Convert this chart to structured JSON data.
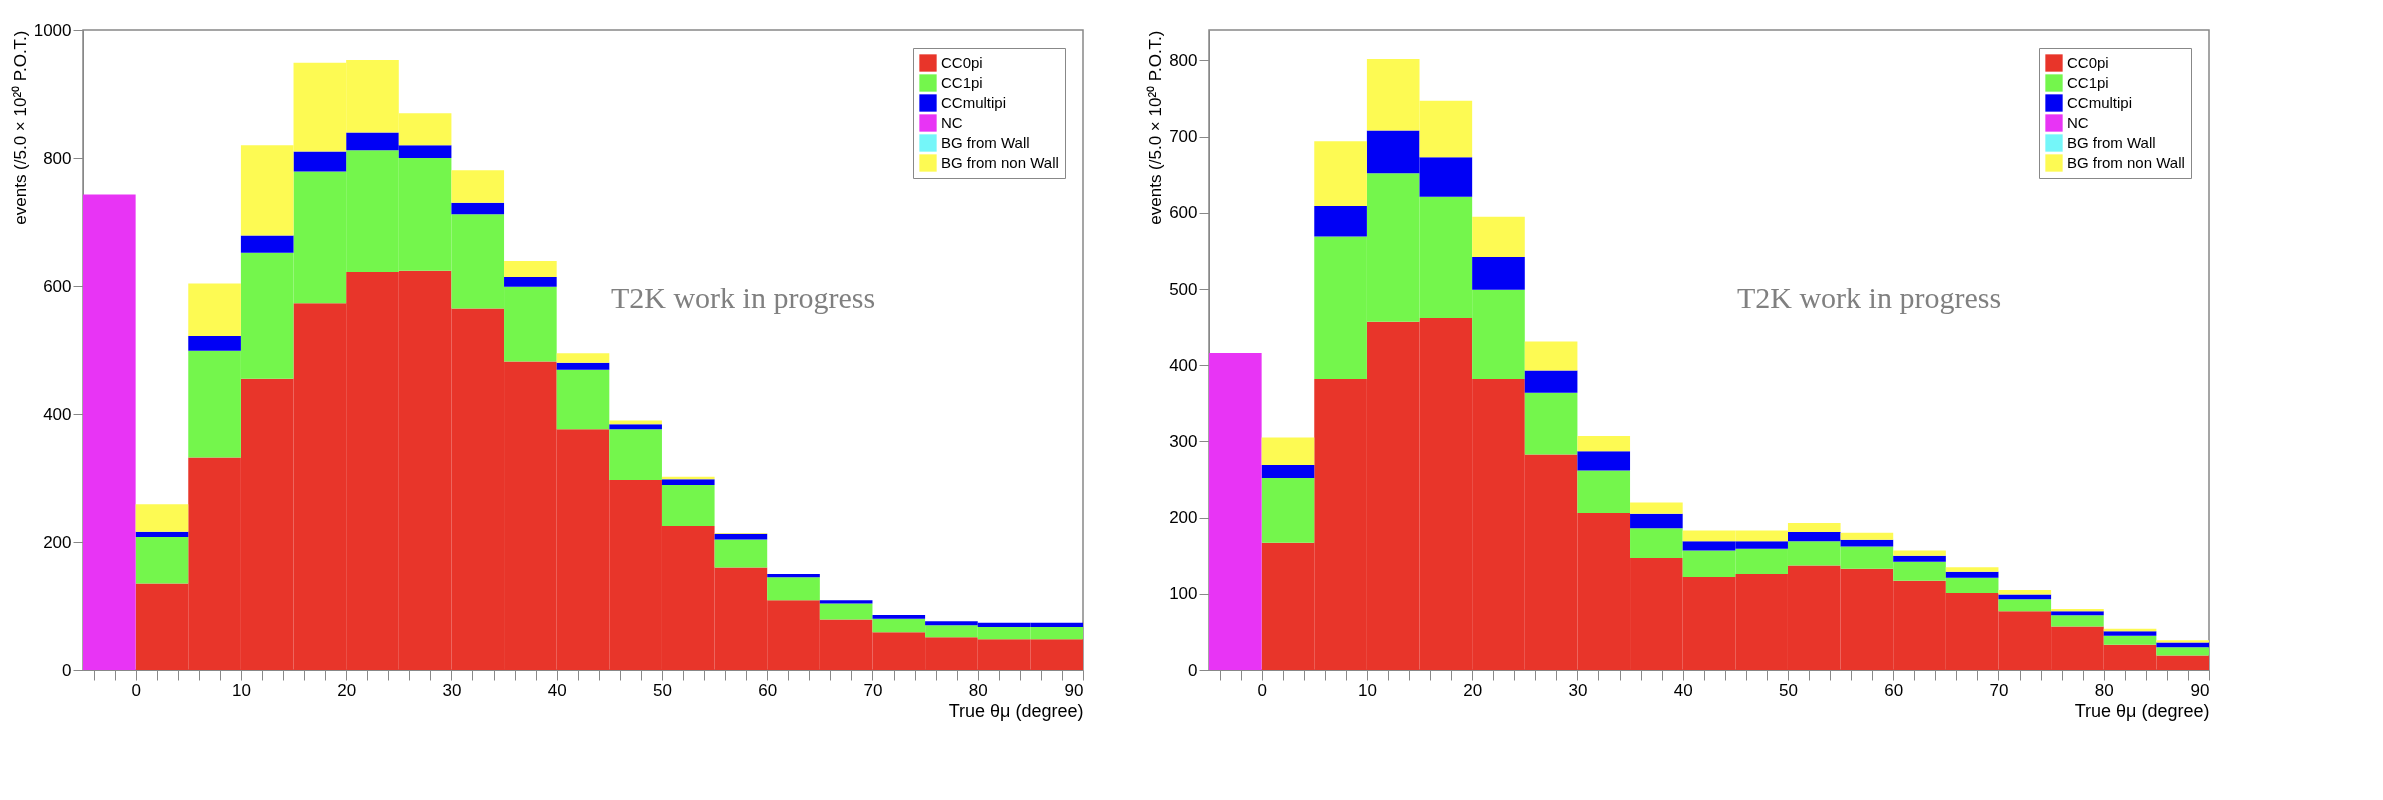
{
  "chart_data": [
    {
      "type": "bar",
      "stacked": true,
      "legend": "top right",
      "grid": false,
      "x": [
        -2.5,
        2.5,
        7.5,
        12.5,
        17.5,
        22.5,
        27.5,
        32.5,
        37.5,
        42.5,
        47.5,
        52.5,
        57.5,
        62.5,
        67.5,
        72.5,
        77.5,
        82.5,
        87.5
      ],
      "xlim": [
        -5,
        90
      ],
      "xticks": [
        {
          "value": -4,
          "label": null
        },
        {
          "value": -2,
          "label": null
        },
        0,
        {
          "value": 2,
          "label": null
        },
        {
          "value": 4,
          "label": null
        },
        {
          "value": 6,
          "label": null
        },
        {
          "value": 8,
          "label": null
        },
        10,
        {
          "value": 12,
          "label": null
        },
        {
          "value": 14,
          "label": null
        },
        {
          "value": 16,
          "label": null
        },
        {
          "value": 18,
          "label": null
        },
        20,
        {
          "value": 22,
          "label": null
        },
        {
          "value": 24,
          "label": null
        },
        {
          "value": 26,
          "label": null
        },
        {
          "value": 28,
          "label": null
        },
        30,
        {
          "value": 32,
          "label": null
        },
        {
          "value": 34,
          "label": null
        },
        {
          "value": 36,
          "label": null
        },
        {
          "value": 38,
          "label": null
        },
        40,
        {
          "value": 42,
          "label": null
        },
        {
          "value": 44,
          "label": null
        },
        {
          "value": 46,
          "label": null
        },
        {
          "value": 48,
          "label": null
        },
        50,
        {
          "value": 52,
          "label": null
        },
        {
          "value": 54,
          "label": null
        },
        {
          "value": 56,
          "label": null
        },
        {
          "value": 58,
          "label": null
        },
        60,
        {
          "value": 62,
          "label": null
        },
        {
          "value": 64,
          "label": null
        },
        {
          "value": 66,
          "label": null
        },
        {
          "value": 68,
          "label": null
        },
        70,
        {
          "value": 72,
          "label": null
        },
        {
          "value": 74,
          "label": null
        },
        {
          "value": 76,
          "label": null
        },
        {
          "value": 78,
          "label": null
        },
        80,
        {
          "value": 82,
          "label": null
        },
        {
          "value": 84,
          "label": null
        },
        {
          "value": 86,
          "label": null
        },
        {
          "value": 88,
          "label": null
        },
        90
      ],
      "ylim": [
        0,
        1000
      ],
      "yticks": [
        0,
        200,
        400,
        600,
        800,
        1000
      ],
      "xlabel": "True θμ (degree)",
      "ylabel": "events (/5.0 × 10²⁰ P.O.T.)",
      "annotations": [
        "T2K work in progress"
      ],
      "series": [
        {
          "name": "CC0pi",
          "color": "#e8352a",
          "values": [
            0,
            135,
            332,
            455,
            573,
            622,
            624,
            565,
            482,
            376,
            297,
            225,
            160,
            109,
            79,
            59,
            51,
            48,
            48
          ]
        },
        {
          "name": "CC1pi",
          "color": "#74f64c",
          "values": [
            0,
            73,
            167,
            197,
            206,
            190,
            176,
            147,
            117,
            93,
            79,
            64,
            44,
            36,
            25,
            21,
            19,
            19,
            19
          ]
        },
        {
          "name": "CCmultipi",
          "color": "#0000f5",
          "values": [
            0,
            8,
            23,
            27,
            31,
            28,
            20,
            18,
            15,
            11,
            8,
            9,
            9,
            5,
            5,
            6,
            6,
            7,
            7
          ]
        },
        {
          "name": "NC",
          "color": "#e834f5",
          "values": [
            743,
            0,
            0,
            0,
            0,
            0,
            0,
            0,
            0,
            0,
            0,
            0,
            0,
            0,
            0,
            0,
            0,
            0,
            0
          ]
        },
        {
          "name": "BG from Wall",
          "color": "#74f6f9",
          "values": [
            0,
            0,
            0,
            0,
            0,
            0,
            0,
            0,
            0,
            0,
            0,
            0,
            0,
            0,
            0,
            0,
            0,
            0,
            0
          ]
        },
        {
          "name": "BG from non Wall",
          "color": "#fdfa53",
          "values": [
            0,
            43,
            82,
            141,
            139,
            113,
            50,
            51,
            25,
            15,
            6,
            4,
            1,
            0,
            0,
            0,
            0,
            0,
            0
          ]
        }
      ]
    },
    {
      "type": "bar",
      "stacked": true,
      "legend": "top right",
      "grid": false,
      "x": [
        -2.5,
        2.5,
        7.5,
        12.5,
        17.5,
        22.5,
        27.5,
        32.5,
        37.5,
        42.5,
        47.5,
        52.5,
        57.5,
        62.5,
        67.5,
        72.5,
        77.5,
        82.5,
        87.5
      ],
      "xlim": [
        -5,
        90
      ],
      "xticks": [
        {
          "value": -4,
          "label": null
        },
        {
          "value": -2,
          "label": null
        },
        0,
        {
          "value": 2,
          "label": null
        },
        {
          "value": 4,
          "label": null
        },
        {
          "value": 6,
          "label": null
        },
        {
          "value": 8,
          "label": null
        },
        10,
        {
          "value": 12,
          "label": null
        },
        {
          "value": 14,
          "label": null
        },
        {
          "value": 16,
          "label": null
        },
        {
          "value": 18,
          "label": null
        },
        20,
        {
          "value": 22,
          "label": null
        },
        {
          "value": 24,
          "label": null
        },
        {
          "value": 26,
          "label": null
        },
        {
          "value": 28,
          "label": null
        },
        30,
        {
          "value": 32,
          "label": null
        },
        {
          "value": 34,
          "label": null
        },
        {
          "value": 36,
          "label": null
        },
        {
          "value": 38,
          "label": null
        },
        40,
        {
          "value": 42,
          "label": null
        },
        {
          "value": 44,
          "label": null
        },
        {
          "value": 46,
          "label": null
        },
        {
          "value": 48,
          "label": null
        },
        50,
        {
          "value": 52,
          "label": null
        },
        {
          "value": 54,
          "label": null
        },
        {
          "value": 56,
          "label": null
        },
        {
          "value": 58,
          "label": null
        },
        60,
        {
          "value": 62,
          "label": null
        },
        {
          "value": 64,
          "label": null
        },
        {
          "value": 66,
          "label": null
        },
        {
          "value": 68,
          "label": null
        },
        70,
        {
          "value": 72,
          "label": null
        },
        {
          "value": 74,
          "label": null
        },
        {
          "value": 76,
          "label": null
        },
        {
          "value": 78,
          "label": null
        },
        80,
        {
          "value": 82,
          "label": null
        },
        {
          "value": 84,
          "label": null
        },
        {
          "value": 86,
          "label": null
        },
        {
          "value": 88,
          "label": null
        },
        90
      ],
      "ylim": [
        0,
        840
      ],
      "yticks": [
        0,
        100,
        200,
        300,
        400,
        500,
        600,
        700,
        800
      ],
      "xlabel": "True θμ (degree)",
      "ylabel": "events (/5.0 × 10²⁰ P.O.T.)",
      "annotations": [
        "T2K work in progress"
      ],
      "series": [
        {
          "name": "CC0pi",
          "color": "#e8352a",
          "values": [
            0,
            167,
            382,
            457,
            462,
            382,
            283,
            206,
            147,
            122,
            126,
            137,
            133,
            117,
            101,
            77,
            57,
            33,
            19
          ]
        },
        {
          "name": "CC1pi",
          "color": "#74f64c",
          "values": [
            0,
            85,
            187,
            195,
            159,
            117,
            81,
            56,
            39,
            35,
            33,
            32,
            29,
            25,
            20,
            16,
            15,
            12,
            11
          ]
        },
        {
          "name": "CCmultipi",
          "color": "#0000f5",
          "values": [
            0,
            17,
            40,
            56,
            52,
            43,
            29,
            25,
            19,
            12,
            10,
            12,
            9,
            8,
            8,
            6,
            5,
            6,
            6
          ]
        },
        {
          "name": "NC",
          "color": "#e834f5",
          "values": [
            416,
            0,
            0,
            0,
            0,
            0,
            0,
            0,
            0,
            0,
            0,
            0,
            0,
            0,
            0,
            0,
            0,
            0,
            0
          ]
        },
        {
          "name": "BG from Wall",
          "color": "#74f6f9",
          "values": [
            0,
            0,
            0,
            0,
            0,
            0,
            0,
            0,
            0,
            0,
            0,
            0,
            0,
            0,
            0,
            0,
            0,
            0,
            0
          ]
        },
        {
          "name": "BG from non Wall",
          "color": "#fdfa53",
          "values": [
            0,
            36,
            85,
            94,
            74,
            53,
            38,
            20,
            15,
            14,
            14,
            12,
            9,
            7,
            6,
            6,
            3,
            3,
            3
          ]
        }
      ]
    }
  ]
}
